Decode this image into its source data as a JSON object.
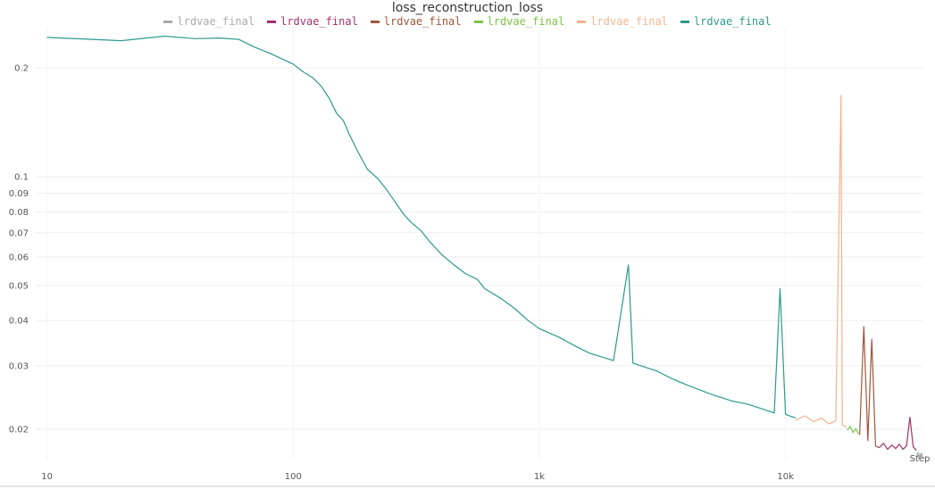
{
  "chart_data": {
    "type": "line",
    "title": "loss_reconstruction_loss",
    "xlabel": "Step",
    "ylabel": "",
    "xscale": "log",
    "yscale": "log",
    "xlim": [
      9,
      36000
    ],
    "ylim": [
      0.0165,
      0.26
    ],
    "grid": true,
    "legend_position": "top",
    "x_ticks": [
      {
        "value": 10,
        "label": "10"
      },
      {
        "value": 100,
        "label": "100"
      },
      {
        "value": 1000,
        "label": "1k"
      },
      {
        "value": 10000,
        "label": "10k"
      }
    ],
    "y_ticks": [
      {
        "value": 0.02,
        "label": "0.02"
      },
      {
        "value": 0.03,
        "label": "0.03"
      },
      {
        "value": 0.04,
        "label": "0.04"
      },
      {
        "value": 0.05,
        "label": "0.05"
      },
      {
        "value": 0.06,
        "label": "0.06"
      },
      {
        "value": 0.07,
        "label": "0.07"
      },
      {
        "value": 0.08,
        "label": "0.08"
      },
      {
        "value": 0.09,
        "label": "0.09"
      },
      {
        "value": 0.1,
        "label": "0.1"
      },
      {
        "value": 0.2,
        "label": "0.2"
      }
    ],
    "series": [
      {
        "name": "lrdvae_final",
        "color": "#aaaaaa",
        "x": [
          34200,
          34500,
          34800,
          35100,
          35400,
          35700,
          36000
        ],
        "y": [
          0.0168,
          0.0173,
          0.0166,
          0.0171,
          0.0167,
          0.0172,
          0.0169
        ]
      },
      {
        "name": "lrdvae_final",
        "color": "#a3306e",
        "x": [
          24000,
          25000,
          26000,
          27000,
          28000,
          29000,
          30000,
          31000,
          32000,
          33000,
          34000
        ],
        "y": [
          0.0178,
          0.0183,
          0.0176,
          0.0181,
          0.0177,
          0.0182,
          0.0176,
          0.018,
          0.0216,
          0.0179,
          0.0175
        ]
      },
      {
        "name": "lrdvae_final",
        "color": "#a0563a",
        "x": [
          20000,
          20800,
          21600,
          22400,
          23200,
          24000
        ],
        "y": [
          0.0193,
          0.0385,
          0.0186,
          0.0355,
          0.018,
          0.0178
        ]
      },
      {
        "name": "lrdvae_final",
        "color": "#7cc246",
        "x": [
          17800,
          18300,
          18800,
          19300,
          19800
        ],
        "y": [
          0.0199,
          0.0204,
          0.0196,
          0.0201,
          0.0194
        ]
      },
      {
        "name": "lrdvae_final",
        "color": "#f0b48e",
        "x": [
          11000,
          12000,
          13000,
          14000,
          15000,
          16000,
          16800,
          17000,
          17700
        ],
        "y": [
          0.0212,
          0.0218,
          0.021,
          0.0215,
          0.0207,
          0.0211,
          0.168,
          0.0206,
          0.0203
        ]
      },
      {
        "name": "lrdvae_final",
        "color": "#2b9a8e",
        "x": [
          10,
          20,
          30,
          40,
          50,
          60,
          70,
          80,
          90,
          100,
          110,
          120,
          130,
          140,
          150,
          160,
          170,
          180,
          190,
          200,
          220,
          240,
          260,
          280,
          300,
          330,
          360,
          400,
          450,
          500,
          560,
          600,
          700,
          800,
          900,
          1000,
          1200,
          1400,
          1600,
          2000,
          2300,
          2400,
          3000,
          3500,
          4000,
          5000,
          6000,
          7000,
          8000,
          9000,
          9500,
          10000,
          11000
        ],
        "y": [
          0.243,
          0.238,
          0.245,
          0.241,
          0.242,
          0.24,
          0.228,
          0.22,
          0.212,
          0.205,
          0.195,
          0.188,
          0.178,
          0.165,
          0.15,
          0.143,
          0.13,
          0.12,
          0.112,
          0.105,
          0.099,
          0.092,
          0.085,
          0.079,
          0.075,
          0.071,
          0.066,
          0.061,
          0.057,
          0.054,
          0.052,
          0.049,
          0.046,
          0.043,
          0.04,
          0.038,
          0.036,
          0.034,
          0.0325,
          0.031,
          0.057,
          0.0305,
          0.029,
          0.0275,
          0.0265,
          0.025,
          0.024,
          0.0235,
          0.0228,
          0.0222,
          0.049,
          0.022,
          0.0215
        ]
      }
    ],
    "axis_end_label": "Step"
  }
}
